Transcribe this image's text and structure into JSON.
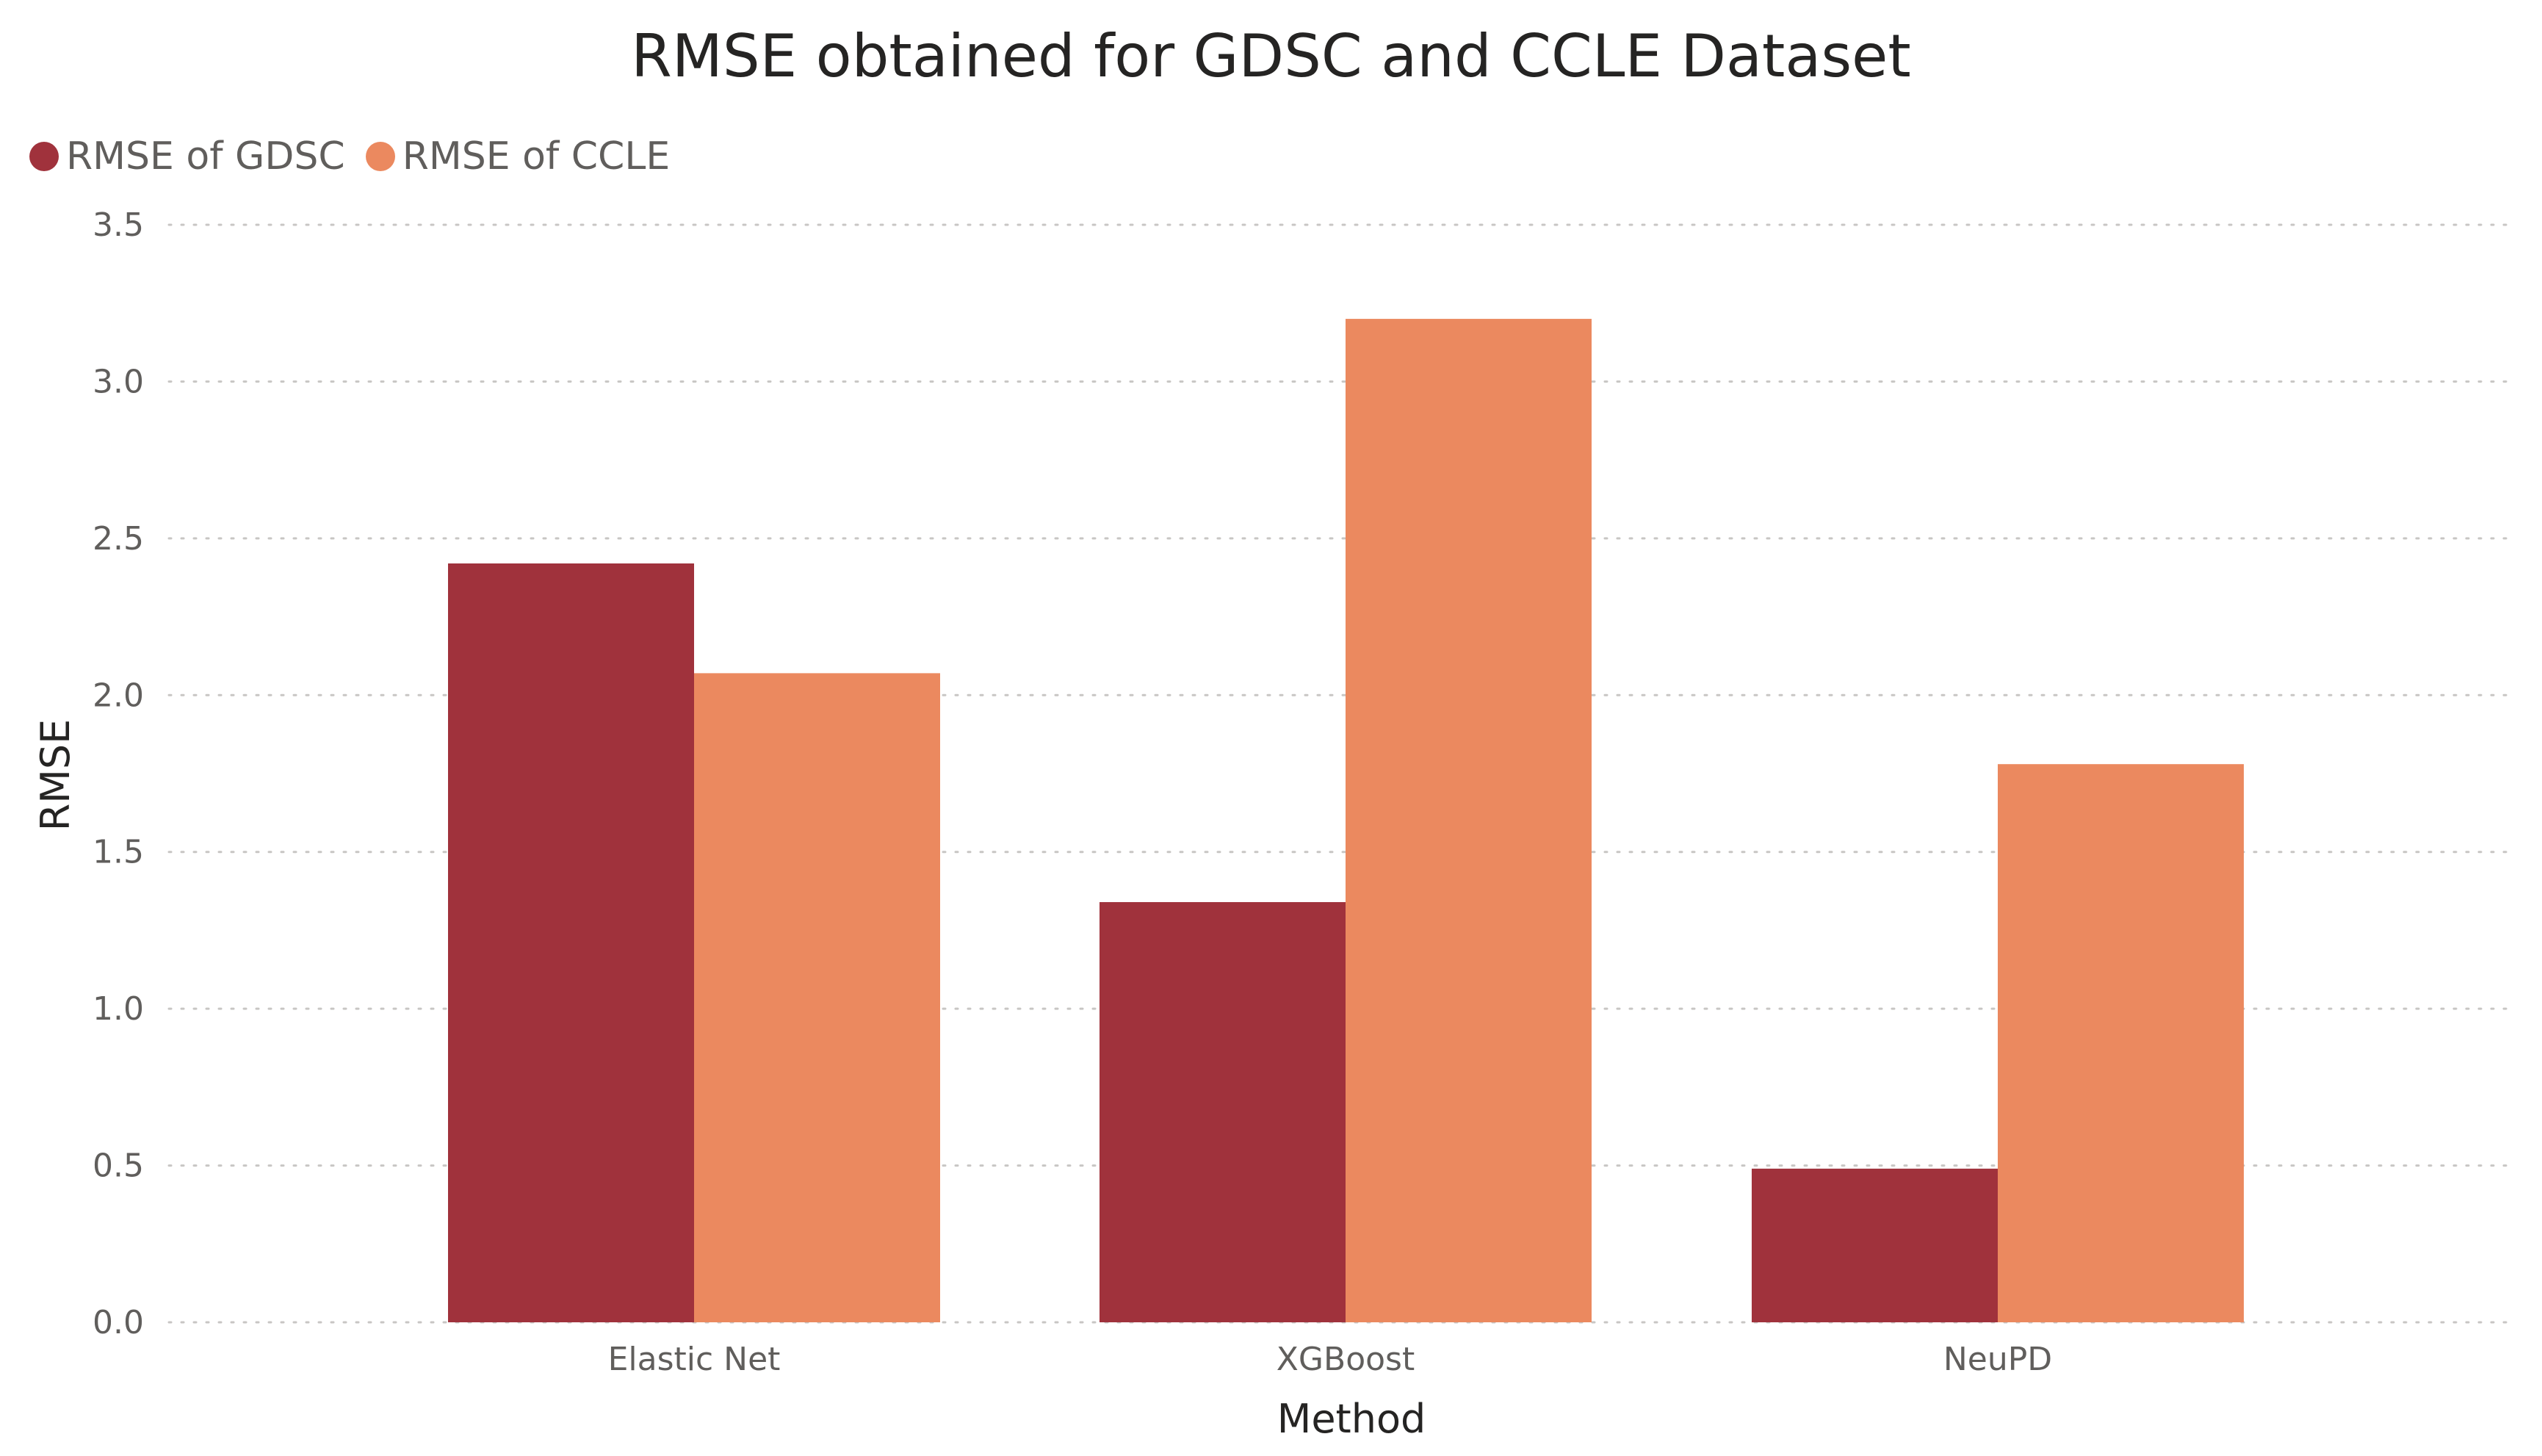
{
  "chart_data": {
    "type": "bar",
    "title": "RMSE obtained for GDSC and CCLE Dataset",
    "xlabel": "Method",
    "ylabel": "RMSE",
    "categories": [
      "Elastic Net",
      "XGBoost",
      "NeuPD"
    ],
    "series": [
      {
        "name": "RMSE of GDSC",
        "color": "#a0323c",
        "values": [
          2.42,
          1.34,
          0.49
        ]
      },
      {
        "name": "RMSE of CCLE",
        "color": "#eb895f",
        "values": [
          2.07,
          3.2,
          1.78
        ]
      }
    ],
    "ylim": [
      0,
      3.5
    ],
    "yticks": [
      "0.0",
      "0.5",
      "1.0",
      "1.5",
      "2.0",
      "2.5",
      "3.0",
      "3.5"
    ],
    "grid": true,
    "legend_position": "top-left"
  }
}
